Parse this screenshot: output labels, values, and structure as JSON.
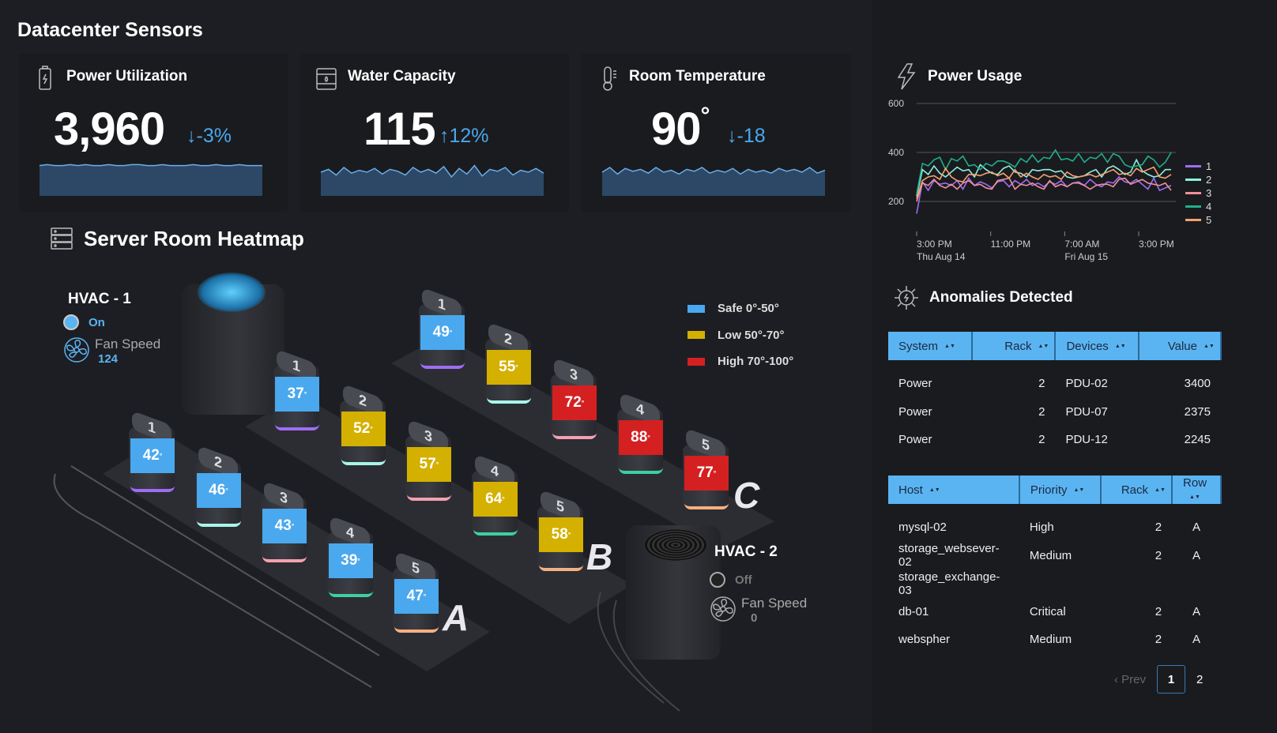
{
  "title": "Datacenter Sensors",
  "cards": [
    {
      "title": "Power Utilization",
      "icon": "battery-charging-icon",
      "value": "3,960",
      "delta": "-3%",
      "direction": "down",
      "spark": [
        62,
        63,
        62,
        62,
        63,
        62,
        63,
        62,
        62,
        63,
        62,
        62,
        63,
        63,
        62,
        62,
        63,
        62,
        62,
        62,
        63,
        62,
        62,
        63,
        62,
        62,
        63,
        62,
        62,
        62
      ]
    },
    {
      "title": "Water Capacity",
      "icon": "water-tank-icon",
      "value": "115",
      "delta": "12%",
      "direction": "up",
      "spark": [
        55,
        58,
        52,
        60,
        54,
        57,
        55,
        59,
        53,
        58,
        56,
        52,
        60,
        55,
        58,
        54,
        61,
        50,
        59,
        53,
        62,
        51,
        58,
        56,
        60,
        52,
        57,
        55,
        59,
        54
      ]
    },
    {
      "title": "Room Temperature",
      "icon": "thermometer-icon",
      "value": "90",
      "unit": "°",
      "delta": "-18",
      "direction": "down",
      "spark": [
        55,
        60,
        53,
        59,
        56,
        58,
        54,
        60,
        55,
        57,
        53,
        58,
        56,
        60,
        54,
        57,
        55,
        59,
        53,
        58,
        55,
        57,
        54,
        59,
        56,
        58,
        55,
        60,
        54,
        57
      ]
    }
  ],
  "heatmap": {
    "title": "Server Room Heatmap",
    "hvac1": {
      "name": "HVAC - 1",
      "status": "On",
      "fan_label": "Fan Speed",
      "fan_speed": "124"
    },
    "hvac2": {
      "name": "HVAC - 2",
      "status": "Off",
      "fan_label": "Fan Speed",
      "fan_speed": "0"
    },
    "legend": [
      {
        "label": "Safe 0°-50°",
        "color": "#4aa8ee"
      },
      {
        "label": "Low 50°-70°",
        "color": "#d4b000"
      },
      {
        "label": "High 70°-100°",
        "color": "#d42020"
      }
    ],
    "rows": [
      {
        "name": "A",
        "racks": [
          {
            "n": "1",
            "temp": "42"
          },
          {
            "n": "2",
            "temp": "46"
          },
          {
            "n": "3",
            "temp": "43"
          },
          {
            "n": "4",
            "temp": "39"
          },
          {
            "n": "5",
            "temp": "47"
          }
        ]
      },
      {
        "name": "B",
        "racks": [
          {
            "n": "1",
            "temp": "37"
          },
          {
            "n": "2",
            "temp": "52"
          },
          {
            "n": "3",
            "temp": "57"
          },
          {
            "n": "4",
            "temp": "64"
          },
          {
            "n": "5",
            "temp": "58"
          }
        ]
      },
      {
        "name": "C",
        "racks": [
          {
            "n": "1",
            "temp": "49"
          },
          {
            "n": "2",
            "temp": "55"
          },
          {
            "n": "3",
            "temp": "72"
          },
          {
            "n": "4",
            "temp": "88"
          },
          {
            "n": "5",
            "temp": "77"
          }
        ]
      }
    ],
    "colors": {
      "safe": "#4aa8ee",
      "low": "#d4b000",
      "high": "#d42020"
    }
  },
  "chart_data": {
    "type": "line",
    "title": "Power Usage",
    "ylim": [
      100,
      600
    ],
    "yticks": [
      200,
      400,
      600
    ],
    "xticks": [
      {
        "label": "3:00 PM",
        "sub": "Thu Aug 14",
        "hour": 0
      },
      {
        "label": "11:00 PM",
        "sub": "",
        "hour": 8
      },
      {
        "label": "7:00 AM",
        "sub": "Fri Aug 15",
        "hour": 16
      },
      {
        "label": "3:00 PM",
        "sub": "",
        "hour": 24
      }
    ],
    "x_hours_end": 27.5,
    "series": [
      {
        "name": "1",
        "color": "#a06cf5",
        "values": [
          150,
          280,
          245,
          285,
          270,
          275,
          265,
          285,
          250,
          295,
          265,
          280,
          270,
          255,
          280,
          285,
          260,
          285,
          270,
          290,
          265,
          275,
          260,
          280,
          270,
          285,
          260,
          275,
          280,
          265,
          290,
          270,
          260,
          280,
          275,
          300,
          280,
          275,
          290,
          270,
          250,
          295,
          245,
          255,
          265
        ]
      },
      {
        "name": "2",
        "color": "#8ff0e0",
        "values": [
          220,
          330,
          310,
          345,
          315,
          300,
          320,
          340,
          325,
          330,
          300,
          350,
          330,
          315,
          310,
          335,
          345,
          320,
          315,
          300,
          330,
          325,
          330,
          330,
          320,
          325,
          300,
          295,
          300,
          305,
          320,
          330,
          300,
          335,
          345,
          330,
          310,
          320,
          370,
          325,
          310,
          300,
          305,
          330,
          330
        ]
      },
      {
        "name": "3",
        "color": "#f08f9a",
        "values": [
          200,
          275,
          265,
          290,
          265,
          255,
          270,
          250,
          275,
          285,
          265,
          270,
          255,
          250,
          285,
          290,
          295,
          250,
          270,
          265,
          275,
          260,
          250,
          285,
          260,
          270,
          260,
          275,
          275,
          265,
          250,
          265,
          270,
          270,
          260,
          290,
          295,
          270,
          280,
          290,
          275,
          270,
          265,
          275,
          245
        ]
      },
      {
        "name": "4",
        "color": "#1faf8a",
        "values": [
          230,
          355,
          345,
          370,
          380,
          330,
          375,
          365,
          385,
          345,
          350,
          330,
          355,
          345,
          365,
          365,
          355,
          340,
          375,
          360,
          390,
          360,
          380,
          375,
          410,
          370,
          375,
          365,
          395,
          360,
          380,
          375,
          395,
          360,
          395,
          385,
          350,
          340,
          345,
          350,
          385,
          370,
          340,
          360,
          400
        ]
      },
      {
        "name": "5",
        "color": "#f5a070",
        "values": [
          210,
          285,
          300,
          305,
          290,
          335,
          300,
          285,
          280,
          310,
          310,
          305,
          315,
          320,
          305,
          315,
          295,
          330,
          300,
          315,
          300,
          290,
          310,
          300,
          305,
          290,
          320,
          305,
          300,
          305,
          310,
          300,
          310,
          320,
          330,
          310,
          315,
          305,
          335,
          320,
          330,
          340,
          300,
          295,
          310
        ]
      }
    ]
  },
  "anomalies": {
    "title": "Anomalies Detected",
    "columns": [
      "System",
      "Rack",
      "Devices",
      "Value"
    ],
    "rows": [
      [
        "Power",
        "2",
        "PDU-02",
        "3400"
      ],
      [
        "Power",
        "2",
        "PDU-07",
        "2375"
      ],
      [
        "Power",
        "2",
        "PDU-12",
        "2245"
      ]
    ]
  },
  "hosts": {
    "columns": [
      "Host",
      "Priority",
      "Rack",
      "Row"
    ],
    "rows": [
      [
        "mysql-02",
        "High",
        "2",
        "A"
      ],
      [
        "storage_websever-02",
        "Medium",
        "2",
        "A"
      ],
      [
        "storage_exchange-03",
        "",
        "",
        ""
      ],
      [
        "db-01",
        "Critical",
        "2",
        "A"
      ],
      [
        "webspher",
        "Medium",
        "2",
        "A"
      ]
    ],
    "pagination": {
      "prev": "Prev",
      "pages": [
        "1",
        "2"
      ],
      "current": "1"
    }
  }
}
